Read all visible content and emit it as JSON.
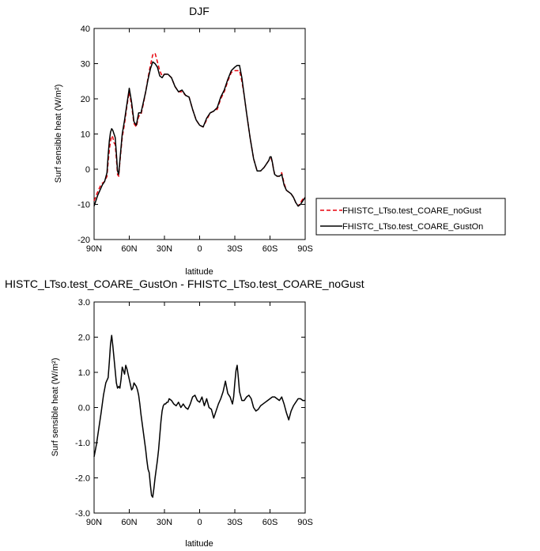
{
  "chart_data": [
    {
      "type": "line",
      "title": "DJF",
      "xlabel": "latitude",
      "ylabel": "Surf sensible heat (W/m²)",
      "xlim": [
        90,
        -90
      ],
      "ylim": [
        -20,
        40
      ],
      "x_tick_labels": [
        "90N",
        "60N",
        "30N",
        "0",
        "30S",
        "60S",
        "90S"
      ],
      "x_tick_values": [
        90,
        60,
        30,
        0,
        -30,
        -60,
        -90
      ],
      "y_ticks": [
        -20,
        -10,
        0,
        10,
        20,
        30,
        40
      ],
      "y_tick_labels": [
        "-20",
        "-10",
        "0",
        "10",
        "20",
        "30",
        "40"
      ],
      "legend_position": "right",
      "x": [
        90,
        87,
        85,
        83,
        81,
        79,
        78,
        77,
        76,
        75,
        74,
        73,
        72,
        71,
        70,
        69,
        68,
        66,
        64,
        62,
        60,
        58,
        56,
        54,
        52,
        50,
        48,
        46,
        44,
        42,
        40,
        38,
        36,
        34,
        32,
        30,
        27,
        24,
        21,
        18,
        15,
        12,
        9,
        6,
        3,
        0,
        -3,
        -6,
        -9,
        -12,
        -15,
        -18,
        -21,
        -24,
        -27,
        -30,
        -32,
        -34,
        -36,
        -38,
        -40,
        -43,
        -46,
        -49,
        -52,
        -55,
        -57,
        -59,
        -60,
        -61,
        -62,
        -63,
        -64,
        -66,
        -68,
        -70,
        -72,
        -74,
        -76,
        -78,
        -80,
        -82,
        -84,
        -86,
        -88,
        -90
      ],
      "series": [
        {
          "name": "FHISTC_LTso.test_COARE_noGust",
          "color": "#e8000b",
          "dash": "dashed",
          "values": [
            -9.0,
            -6.5,
            -5.0,
            -4.0,
            -3.5,
            -2.0,
            2.0,
            5.5,
            8.0,
            9.5,
            9.0,
            7.5,
            7.0,
            3.0,
            -1.5,
            -2.0,
            2.0,
            9.0,
            13.0,
            18.0,
            22.0,
            18.0,
            13.0,
            12.0,
            15.0,
            15.5,
            18.5,
            22.0,
            26.0,
            29.5,
            32.5,
            33.0,
            30.5,
            28.0,
            26.5,
            27.0,
            27.0,
            26.0,
            23.5,
            22.0,
            22.0,
            21.0,
            20.5,
            17.0,
            14.0,
            12.5,
            12.0,
            14.0,
            16.0,
            16.5,
            17.0,
            20.0,
            22.0,
            25.0,
            27.5,
            28.0,
            28.0,
            28.0,
            25.0,
            21.0,
            16.0,
            9.0,
            3.0,
            -0.5,
            -0.5,
            0.5,
            1.5,
            2.5,
            3.0,
            3.0,
            2.0,
            0.0,
            -1.5,
            -2.0,
            -2.0,
            -1.0,
            -4.0,
            -6.0,
            -6.5,
            -7.0,
            -8.0,
            -9.5,
            -10.5,
            -9.5,
            -8.5,
            -8.0
          ]
        },
        {
          "name": "FHISTC_LTso.test_COARE_GustOn",
          "color": "#000000",
          "dash": "solid",
          "values": [
            -10.5,
            -7.5,
            -6.0,
            -4.5,
            -3.5,
            -1.0,
            4.0,
            8.0,
            10.5,
            11.5,
            11.0,
            10.0,
            9.0,
            4.5,
            -0.5,
            -1.5,
            2.5,
            10.0,
            14.0,
            18.5,
            23.0,
            19.0,
            13.5,
            12.5,
            16.0,
            16.0,
            19.0,
            22.0,
            25.5,
            28.5,
            30.5,
            30.0,
            29.0,
            26.5,
            26.0,
            27.0,
            27.0,
            26.0,
            23.5,
            22.0,
            22.5,
            21.0,
            20.5,
            17.0,
            14.0,
            12.5,
            12.0,
            14.5,
            16.0,
            16.5,
            17.5,
            20.5,
            22.5,
            25.5,
            28.0,
            29.0,
            29.5,
            29.5,
            26.0,
            21.0,
            16.0,
            9.0,
            3.0,
            -0.5,
            -0.5,
            0.5,
            1.5,
            2.5,
            3.5,
            3.5,
            2.0,
            0.0,
            -1.5,
            -2.0,
            -2.0,
            -1.5,
            -4.5,
            -6.0,
            -6.5,
            -7.0,
            -8.0,
            -9.5,
            -10.5,
            -10.0,
            -9.0,
            -8.0
          ]
        }
      ]
    },
    {
      "type": "line",
      "title": "HISTC_LTso.test_COARE_GustOn - FHISTC_LTso.test_COARE_noGust",
      "xlabel": "latitude",
      "ylabel": "Surf sensible heat (W/m²)",
      "xlim": [
        90,
        -90
      ],
      "ylim": [
        -3.0,
        3.0
      ],
      "x_tick_labels": [
        "90N",
        "60N",
        "30N",
        "0",
        "30S",
        "60S",
        "90S"
      ],
      "x_tick_values": [
        90,
        60,
        30,
        0,
        -30,
        -60,
        -90
      ],
      "y_ticks": [
        -3,
        -2,
        -1,
        0,
        1,
        2,
        3
      ],
      "y_tick_labels": [
        "-3.0",
        "-2.0",
        "-1.0",
        "0.0",
        "1.0",
        "2.0",
        "3.0"
      ],
      "x": [
        90,
        88,
        86,
        84,
        82,
        80,
        78,
        77,
        76,
        75,
        74,
        73,
        72,
        71,
        70,
        69,
        68,
        67,
        66,
        65,
        64,
        63,
        62,
        61,
        60,
        59,
        58,
        57,
        56,
        55,
        54,
        53,
        52,
        51,
        50,
        49,
        48,
        47,
        46,
        45,
        44,
        43,
        42,
        41,
        40,
        39,
        38,
        37,
        36,
        35,
        34,
        33,
        32,
        31,
        30,
        29,
        28,
        27,
        26,
        24,
        22,
        20,
        18,
        16,
        14,
        12,
        10,
        8,
        6,
        4,
        2,
        0,
        -2,
        -4,
        -6,
        -8,
        -10,
        -12,
        -14,
        -16,
        -18,
        -20,
        -22,
        -24,
        -26,
        -28,
        -29,
        -30,
        -31,
        -32,
        -33,
        -34,
        -36,
        -38,
        -40,
        -42,
        -44,
        -46,
        -48,
        -50,
        -52,
        -54,
        -56,
        -58,
        -60,
        -62,
        -64,
        -66,
        -68,
        -70,
        -72,
        -74,
        -76,
        -78,
        -80,
        -82,
        -84,
        -86,
        -88,
        -90
      ],
      "series": [
        {
          "name": "",
          "color": "#000000",
          "dash": "solid",
          "values": [
            -1.4,
            -1.05,
            -0.6,
            -0.15,
            0.35,
            0.7,
            0.85,
            1.3,
            1.8,
            2.05,
            1.75,
            1.4,
            1.05,
            0.7,
            0.55,
            0.6,
            0.55,
            0.8,
            1.15,
            1.05,
            0.95,
            1.2,
            1.1,
            0.95,
            0.8,
            0.65,
            0.5,
            0.55,
            0.7,
            0.65,
            0.6,
            0.5,
            0.35,
            0.1,
            -0.2,
            -0.45,
            -0.7,
            -0.95,
            -1.2,
            -1.5,
            -1.75,
            -1.85,
            -2.2,
            -2.5,
            -2.55,
            -2.3,
            -2.0,
            -1.75,
            -1.5,
            -1.2,
            -0.8,
            -0.4,
            -0.1,
            0.05,
            0.1,
            0.1,
            0.15,
            0.15,
            0.25,
            0.2,
            0.1,
            0.05,
            0.15,
            0.0,
            0.1,
            0.0,
            -0.05,
            0.1,
            0.3,
            0.35,
            0.2,
            0.15,
            0.3,
            0.05,
            0.25,
            0.0,
            -0.05,
            -0.3,
            -0.1,
            0.1,
            0.25,
            0.45,
            0.75,
            0.4,
            0.3,
            0.1,
            0.3,
            0.7,
            1.05,
            1.2,
            0.85,
            0.45,
            0.2,
            0.2,
            0.3,
            0.35,
            0.25,
            0.0,
            -0.1,
            -0.05,
            0.05,
            0.1,
            0.15,
            0.2,
            0.25,
            0.3,
            0.3,
            0.25,
            0.2,
            0.3,
            0.1,
            -0.15,
            -0.35,
            -0.1,
            0.05,
            0.15,
            0.25,
            0.25,
            0.2,
            0.2
          ]
        }
      ]
    }
  ]
}
